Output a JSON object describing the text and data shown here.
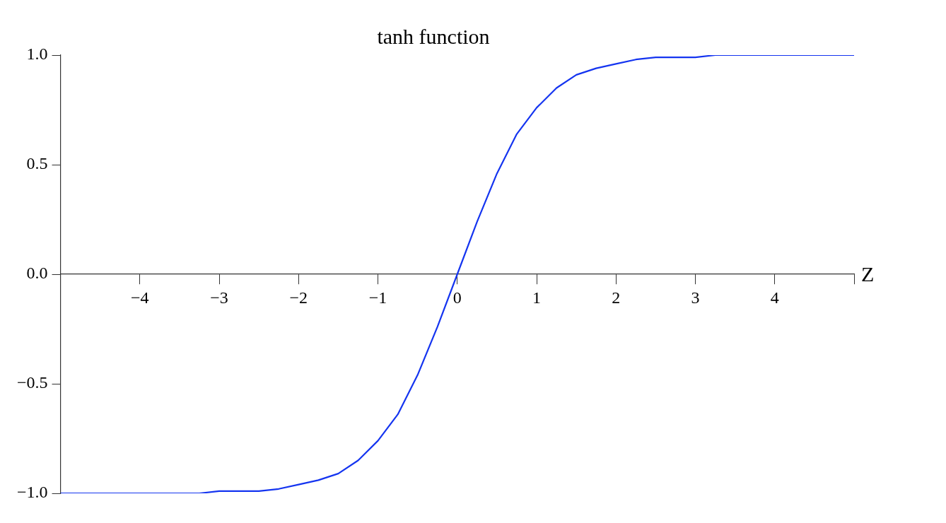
{
  "chart_data": {
    "type": "line",
    "title": "tanh function",
    "xlabel": "Z",
    "x": [
      -5,
      -4.75,
      -4.5,
      -4.25,
      -4,
      -3.75,
      -3.5,
      -3.25,
      -3,
      -2.75,
      -2.5,
      -2.25,
      -2,
      -1.75,
      -1.5,
      -1.25,
      -1,
      -0.75,
      -0.5,
      -0.25,
      0,
      0.25,
      0.5,
      0.75,
      1,
      1.25,
      1.5,
      1.75,
      2,
      2.25,
      2.5,
      2.75,
      3,
      3.25,
      3.5,
      3.75,
      4,
      4.25,
      4.5,
      4.75,
      5
    ],
    "series": [
      {
        "color": "#1434f0",
        "values": [
          -1,
          -1,
          -1,
          -1,
          -1,
          -1,
          -1,
          -1,
          -0.99,
          -0.99,
          -0.99,
          -0.98,
          -0.96,
          -0.94,
          -0.91,
          -0.85,
          -0.76,
          -0.64,
          -0.46,
          -0.24,
          0,
          0.24,
          0.46,
          0.64,
          0.76,
          0.85,
          0.91,
          0.94,
          0.96,
          0.98,
          0.99,
          0.99,
          0.99,
          1,
          1,
          1,
          1,
          1,
          1,
          1,
          1
        ]
      }
    ],
    "xlim": [
      -5,
      5
    ],
    "ylim": [
      -1,
      1
    ],
    "xticks": [
      {
        "value": -4,
        "label": "−4"
      },
      {
        "value": -3,
        "label": "−3"
      },
      {
        "value": -2,
        "label": "−2"
      },
      {
        "value": -1,
        "label": "−1"
      },
      0,
      1,
      2,
      3,
      4,
      {
        "value": 5,
        "label": null
      }
    ],
    "yticks": [
      {
        "value": -1,
        "label": "−1.0"
      },
      {
        "value": -0.5,
        "label": "−0.5"
      },
      {
        "value": 0,
        "label": "0.0"
      },
      {
        "value": 0.5,
        "label": "0.5"
      },
      {
        "value": 1,
        "label": "1.0"
      }
    ],
    "marker": "none",
    "line_style": "solid"
  }
}
